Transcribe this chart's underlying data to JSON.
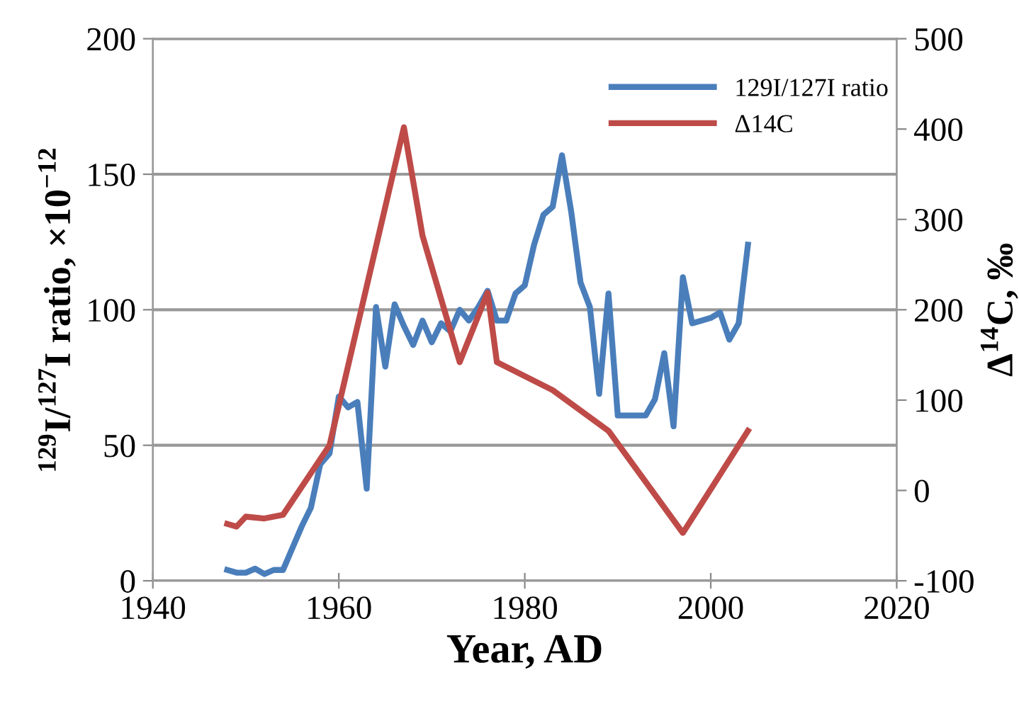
{
  "chart_data": {
    "type": "line",
    "xlabel": "Year, AD",
    "ylabel": "$^{129}$I/$^{127}$I ratio, ×10$^{−12}$",
    "y2label": "Δ$^{14}$C, ‰",
    "xlim": [
      1940,
      2020
    ],
    "xticks": [
      1940,
      1960,
      1980,
      2000,
      2020
    ],
    "ylim": [
      0,
      200
    ],
    "yticks": [
      0,
      50,
      100,
      150,
      200
    ],
    "y2lim": [
      -100,
      500
    ],
    "y2ticks": [
      -100,
      0,
      100,
      200,
      300,
      400,
      500
    ],
    "grid": "y",
    "legend": "top right",
    "marker": "none",
    "line_style": "solid",
    "series": [
      {
        "name": "129I/127I ratio",
        "color": "#4a7ebb",
        "x": [
          1948,
          1949,
          1950,
          1951,
          1952,
          1953,
          1954,
          1955,
          1956,
          1957,
          1958,
          1959,
          1960,
          1961,
          1962,
          1963,
          1964,
          1965,
          1966,
          1967,
          1968,
          1969,
          1970,
          1971,
          1972,
          1973,
          1974,
          1975,
          1976,
          1977,
          1978,
          1979,
          1980,
          1981,
          1982,
          1983,
          1984,
          1985,
          1986,
          1987,
          1988,
          1989,
          1990,
          1991,
          1992,
          1993,
          1994,
          1995,
          1996,
          1997,
          1998,
          1999,
          2000,
          2001,
          2002,
          2003,
          2004
        ],
        "values": [
          4,
          3,
          3,
          4.5,
          2.5,
          4,
          4,
          12,
          20,
          27,
          43,
          47,
          68,
          64,
          66,
          34,
          101,
          79,
          102,
          94,
          87,
          96,
          88,
          95,
          92,
          100,
          96,
          101,
          107,
          96,
          96,
          106,
          109,
          124,
          135,
          138,
          157,
          136,
          110,
          101,
          69,
          106,
          61,
          61,
          61,
          61,
          67,
          84,
          57,
          112,
          95,
          96,
          97,
          99,
          89,
          95,
          124
        ]
      },
      {
        "name": "Δ14C",
        "color": "#be4b48",
        "axis": "y2",
        "x": [
          1948,
          1949,
          1950,
          1952,
          1954,
          1959,
          1967,
          1969,
          1973,
          1976,
          1977,
          1983,
          1989,
          1997,
          2004
        ],
        "values": [
          -37,
          -40,
          -29,
          -31,
          -27,
          50,
          402,
          282,
          142,
          219,
          142,
          111,
          66,
          -47,
          66
        ]
      }
    ]
  }
}
